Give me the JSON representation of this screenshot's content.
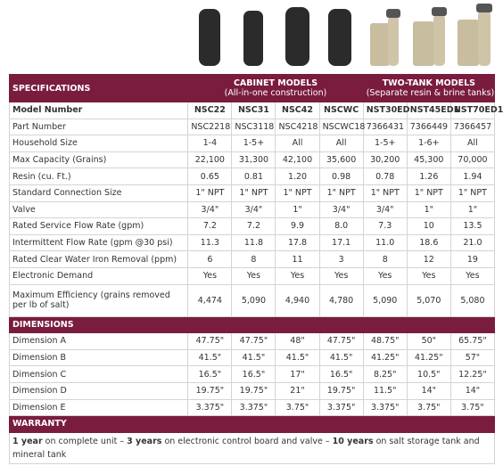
{
  "table": {
    "section_title": "SPECIFICATIONS",
    "groups": [
      {
        "name": "CABINET MODELS",
        "note": "(All-in-one construction)",
        "span": 4
      },
      {
        "name": "TWO-TANK MODELS",
        "note": "(Separate resin & brine tanks)",
        "span": 3
      }
    ],
    "rows": [
      [
        "Model Number",
        "NSC22",
        "NSC31",
        "NSC42",
        "NSCWC",
        "NST30ED",
        "NST45ED1",
        "NST70ED1"
      ],
      [
        "Part Number",
        "NSC2218",
        "NSC3118",
        "NSC4218",
        "NSCWC18",
        "7366431",
        "7366449",
        "7366457"
      ],
      [
        "Household Size",
        "1-4",
        "1-5+",
        "All",
        "All",
        "1-5+",
        "1-6+",
        "All"
      ],
      [
        "Max Capacity (Grains)",
        "22,100",
        "31,300",
        "42,100",
        "35,600",
        "30,200",
        "45,300",
        "70,000"
      ],
      [
        "Resin (cu. Ft.)",
        "0.65",
        "0.81",
        "1.20",
        "0.98",
        "0.78",
        "1.26",
        "1.94"
      ],
      [
        "Standard Connection Size",
        "1\" NPT",
        "1\" NPT",
        "1\" NPT",
        "1\" NPT",
        "1\" NPT",
        "1\" NPT",
        "1\" NPT"
      ],
      [
        "Valve",
        "3/4\"",
        "3/4\"",
        "1\"",
        "3/4\"",
        "3/4\"",
        "1\"",
        "1\""
      ],
      [
        "Rated Service Flow Rate (gpm)",
        "7.2",
        "7.2",
        "9.9",
        "8.0",
        "7.3",
        "10",
        "13.5"
      ],
      [
        "Intermittent Flow Rate (gpm @30 psi)",
        "11.3",
        "11.8",
        "17.8",
        "17.1",
        "11.0",
        "18.6",
        "21.0"
      ],
      [
        "Rated Clear Water Iron Removal (ppm)",
        "6",
        "8",
        "11",
        "3",
        "8",
        "12",
        "19"
      ],
      [
        "Electronic Demand",
        "Yes",
        "Yes",
        "Yes",
        "Yes",
        "Yes",
        "Yes",
        "Yes"
      ],
      [
        "Maximum Efficiency (grains removed per lb of salt)",
        "4,474",
        "5,090",
        "4,940",
        "4,780",
        "5,090",
        "5,070",
        "5,080"
      ]
    ],
    "dimensions_title": "DIMENSIONS",
    "dimension_rows": [
      [
        "Dimension A",
        "47.75\"",
        "47.75\"",
        "48\"",
        "47.75\"",
        "48.75\"",
        "50\"",
        "65.75\""
      ],
      [
        "Dimension B",
        "41.5\"",
        "41.5\"",
        "41.5\"",
        "41.5\"",
        "41.25\"",
        "41.25\"",
        "57\""
      ],
      [
        "Dimension C",
        "16.5\"",
        "16.5\"",
        "17\"",
        "16.5\"",
        "8.25\"",
        "10.5\"",
        "12.25\""
      ],
      [
        "Dimension D",
        "19.75\"",
        "19.75\"",
        "21\"",
        "19.75\"",
        "11.5\"",
        "14\"",
        "14\""
      ],
      [
        "Dimension E",
        "3.375\"",
        "3.375\"",
        "3.75\"",
        "3.375\"",
        "3.375\"",
        "3.75\"",
        "3.75\""
      ]
    ],
    "warranty_title": "WARRANTY",
    "warranty_text": [
      {
        "text": "1 year",
        "bold": true
      },
      {
        "text": " on complete unit – ",
        "bold": false
      },
      {
        "text": "3 years",
        "bold": true
      },
      {
        "text": " on electronic control board and valve – ",
        "bold": false
      },
      {
        "text": "10 years",
        "bold": true
      },
      {
        "text": " on salt storage tank and mineral tank",
        "bold": false
      }
    ]
  }
}
